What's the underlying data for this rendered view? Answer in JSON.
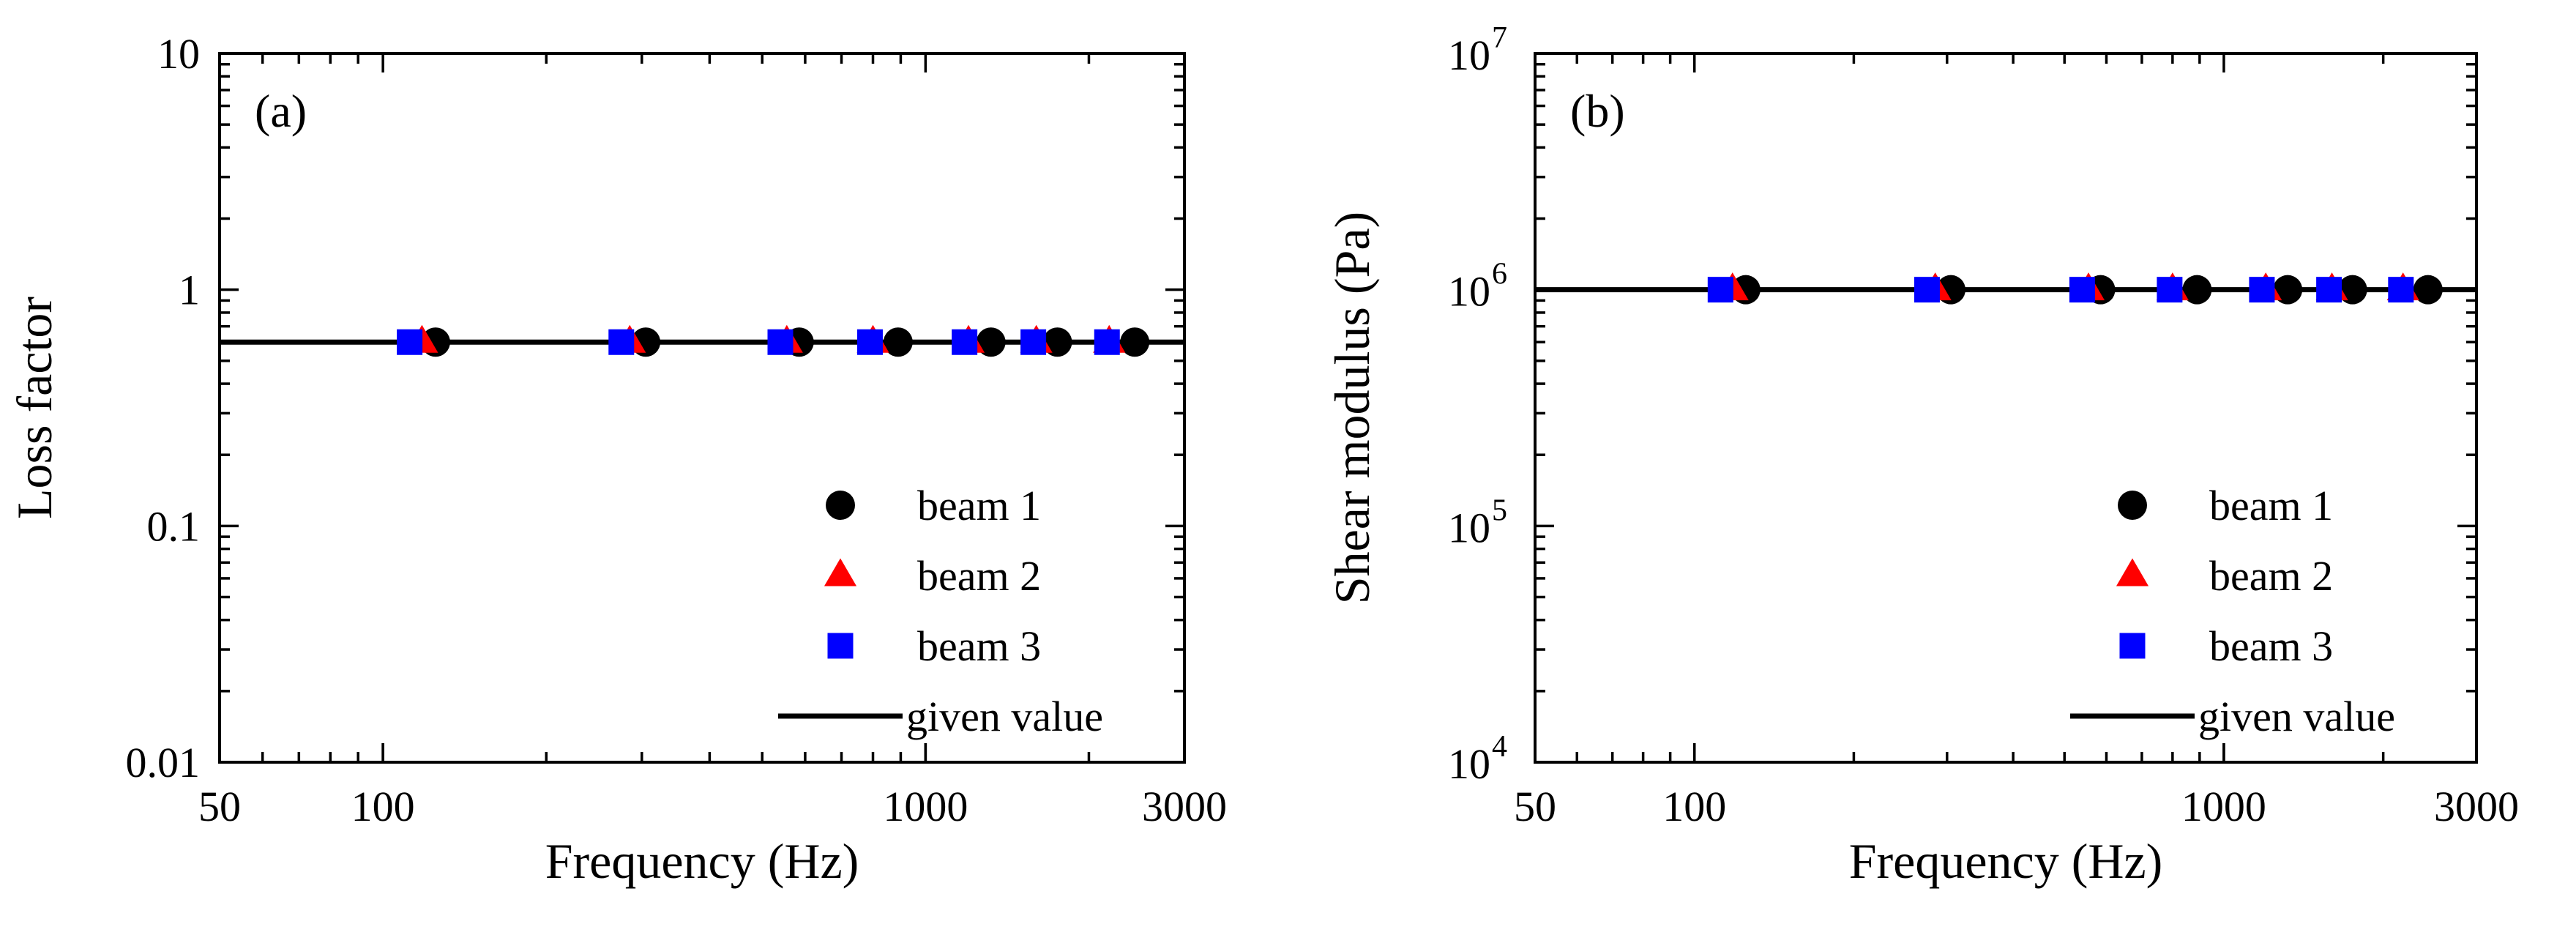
{
  "chart_data": [
    {
      "type": "scatter",
      "panel_label": "(a)",
      "xlabel": "Frequency (Hz)",
      "ylabel": "Loss factor",
      "xscale": "log",
      "yscale": "log",
      "xlim": [
        50,
        3000
      ],
      "ylim": [
        0.01,
        10
      ],
      "x_tick_labels": [
        {
          "value": 50,
          "label": "50"
        },
        {
          "value": 100,
          "label": "100"
        },
        {
          "value": 1000,
          "label": "1000"
        },
        {
          "value": 3000,
          "label": "3000"
        }
      ],
      "y_tick_labels": [
        {
          "value": 0.01,
          "label": "0.01"
        },
        {
          "value": 0.1,
          "label": "0.1"
        },
        {
          "value": 1,
          "label": "1"
        },
        {
          "value": 10,
          "label": "10"
        }
      ],
      "legend_position": "bottom-right",
      "series": [
        {
          "name": "beam 1",
          "marker": "circle",
          "color": "#000000",
          "x": [
            125,
            305,
            585,
            890,
            1320,
            1750,
            2430
          ],
          "y": [
            0.6,
            0.6,
            0.6,
            0.6,
            0.6,
            0.6,
            0.6
          ]
        },
        {
          "name": "beam 2",
          "marker": "triangle",
          "color": "#ff0000",
          "x": [
            118,
            285,
            555,
            800,
            1200,
            1600,
            2180
          ],
          "y": [
            0.6,
            0.6,
            0.6,
            0.6,
            0.6,
            0.6,
            0.6
          ]
        },
        {
          "name": "beam 3",
          "marker": "square",
          "color": "#0000ff",
          "x": [
            112,
            275,
            540,
            790,
            1180,
            1580,
            2160
          ],
          "y": [
            0.6,
            0.6,
            0.6,
            0.6,
            0.6,
            0.6,
            0.6
          ]
        }
      ],
      "reference_line": {
        "name": "given value",
        "value": 0.6,
        "color": "#000000"
      }
    },
    {
      "type": "scatter",
      "panel_label": "(b)",
      "xlabel": "Frequency (Hz)",
      "ylabel": "Shear modulus (Pa)",
      "xscale": "log",
      "yscale": "log",
      "xlim": [
        50,
        3000
      ],
      "ylim": [
        10000,
        10000000
      ],
      "x_tick_labels": [
        {
          "value": 50,
          "label": "50"
        },
        {
          "value": 100,
          "label": "100"
        },
        {
          "value": 1000,
          "label": "1000"
        },
        {
          "value": 3000,
          "label": "3000"
        }
      ],
      "y_tick_labels": [
        {
          "value": 10000,
          "base": "10",
          "exp": "4"
        },
        {
          "value": 100000,
          "base": "10",
          "exp": "5"
        },
        {
          "value": 1000000,
          "base": "10",
          "exp": "6"
        },
        {
          "value": 10000000,
          "base": "10",
          "exp": "7"
        }
      ],
      "legend_position": "bottom-right",
      "series": [
        {
          "name": "beam 1",
          "marker": "circle",
          "color": "#000000",
          "x": [
            125,
            305,
            585,
            890,
            1320,
            1750,
            2430
          ],
          "y": [
            1000000,
            1000000,
            1000000,
            1000000,
            1000000,
            1000000,
            1000000
          ]
        },
        {
          "name": "beam 2",
          "marker": "triangle",
          "color": "#ff0000",
          "x": [
            118,
            285,
            555,
            800,
            1200,
            1600,
            2180
          ],
          "y": [
            1000000,
            1000000,
            1000000,
            1000000,
            1000000,
            1000000,
            1000000
          ]
        },
        {
          "name": "beam 3",
          "marker": "square",
          "color": "#0000ff",
          "x": [
            112,
            275,
            540,
            790,
            1180,
            1580,
            2160
          ],
          "y": [
            1000000,
            1000000,
            1000000,
            1000000,
            1000000,
            1000000,
            1000000
          ]
        }
      ],
      "reference_line": {
        "name": "given value",
        "value": 1000000,
        "color": "#000000"
      }
    }
  ]
}
